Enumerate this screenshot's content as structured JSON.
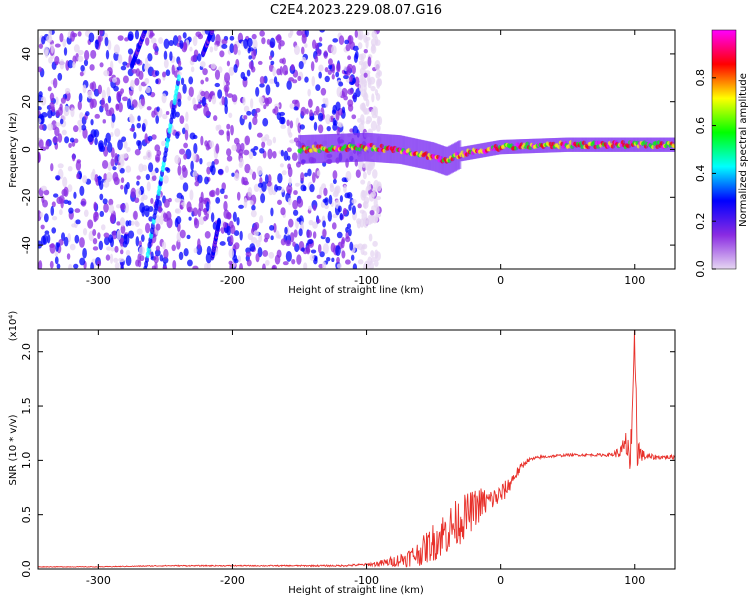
{
  "title": "C2E4.2023.229.08.07.G16",
  "chart_data": [
    {
      "type": "heatmap",
      "xlabel": "Height of straight line (km)",
      "ylabel": "Frequency (Hz)",
      "xlim": [
        -345,
        130
      ],
      "ylim": [
        -50,
        50
      ],
      "x_ticks": [
        -300,
        -200,
        -100,
        0,
        100
      ],
      "y_ticks": [
        -40,
        -20,
        0,
        20,
        40
      ],
      "colorbar": {
        "label": "Normalized spectral amplitude",
        "range": [
          0.0,
          1.0
        ],
        "ticks": [
          0.0,
          0.2,
          0.4,
          0.6,
          0.8
        ],
        "colors": [
          "#e6d6f2",
          "#8a2be2",
          "#0000ff",
          "#00ffff",
          "#00ff00",
          "#ffff00",
          "#ff0000",
          "#ff00ff"
        ]
      },
      "features": [
        {
          "name": "broadband noise",
          "x_range": [
            -345,
            -105
          ],
          "y_range": [
            -50,
            50
          ],
          "level": 0.25
        },
        {
          "name": "sparse noise",
          "x_range": [
            -105,
            -90
          ],
          "y_range": [
            -50,
            50
          ],
          "level": 0.1
        },
        {
          "name": "carrier line",
          "x": [
            -150,
            -100,
            -75,
            -50,
            -40,
            -30,
            0,
            50,
            100,
            130
          ],
          "y": [
            0,
            1,
            0,
            -3,
            -5,
            -2,
            1,
            2,
            2,
            2
          ],
          "level": 0.85
        },
        {
          "name": "streak 1",
          "x": [
            -265,
            -240
          ],
          "y": [
            -50,
            30
          ],
          "level": 0.4
        },
        {
          "name": "streak 2",
          "x": [
            -275,
            -265
          ],
          "y": [
            35,
            50
          ],
          "level": 0.3
        },
        {
          "name": "streak 3",
          "x": [
            -222,
            -215
          ],
          "y": [
            40,
            50
          ],
          "level": 0.3
        },
        {
          "name": "streak 4",
          "x": [
            -215,
            -210
          ],
          "y": [
            -45,
            -30
          ],
          "level": 0.3
        }
      ]
    },
    {
      "type": "line",
      "xlabel": "Height of straight line (km)",
      "ylabel": "SNR (10 * v/v)",
      "scale_label": "(x10⁴)",
      "xlim": [
        -345,
        130
      ],
      "ylim": [
        0,
        2.2
      ],
      "x_ticks": [
        -300,
        -200,
        -100,
        0,
        100
      ],
      "y_ticks": [
        "0.0",
        "0.5",
        "1.0",
        "1.5",
        "2.0"
      ],
      "series": [
        {
          "color": "#e8302a",
          "x": [
            -345,
            -300,
            -250,
            -200,
            -150,
            -120,
            -100,
            -90,
            -80,
            -70,
            -60,
            -55,
            -50,
            -45,
            -40,
            -35,
            -30,
            -25,
            -20,
            -15,
            -10,
            -5,
            0,
            5,
            10,
            15,
            20,
            30,
            40,
            50,
            60,
            70,
            80,
            85,
            90,
            95,
            97,
            99,
            100,
            102,
            105,
            110,
            120,
            130
          ],
          "y": [
            0.02,
            0.02,
            0.03,
            0.03,
            0.03,
            0.03,
            0.04,
            0.05,
            0.07,
            0.1,
            0.15,
            0.2,
            0.25,
            0.3,
            0.35,
            0.4,
            0.45,
            0.5,
            0.55,
            0.6,
            0.62,
            0.65,
            0.68,
            0.75,
            0.85,
            0.93,
            1.0,
            1.03,
            1.04,
            1.05,
            1.05,
            1.05,
            1.05,
            1.06,
            1.08,
            1.15,
            0.95,
            1.4,
            2.2,
            1.1,
            1.05,
            1.03,
            1.03,
            1.03
          ],
          "noise": [
            0.003,
            0.003,
            0.005,
            0.005,
            0.006,
            0.008,
            0.012,
            0.03,
            0.05,
            0.08,
            0.12,
            0.15,
            0.18,
            0.2,
            0.22,
            0.22,
            0.22,
            0.2,
            0.18,
            0.16,
            0.12,
            0.1,
            0.1,
            0.08,
            0.06,
            0.04,
            0.02,
            0.015,
            0.012,
            0.012,
            0.012,
            0.012,
            0.015,
            0.03,
            0.07,
            0.2,
            0.3,
            0.4,
            0.4,
            0.2,
            0.06,
            0.03,
            0.02,
            0.02
          ]
        }
      ]
    }
  ]
}
